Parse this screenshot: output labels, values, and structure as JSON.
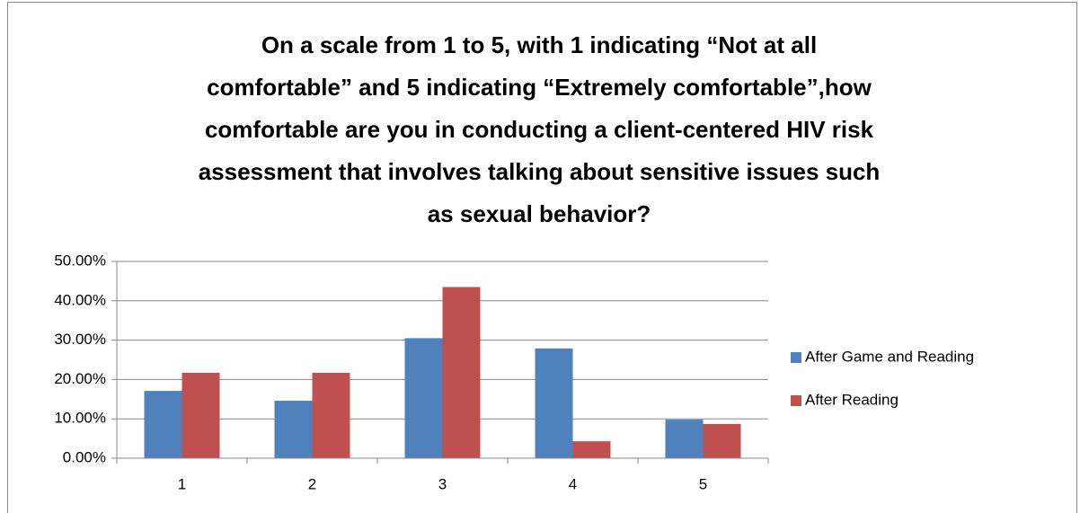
{
  "chart_data": {
    "type": "bar",
    "title": [
      "On a scale from 1 to 5, with 1 indicating “Not at all",
      "comfortable” and 5 indicating “Extremely comfortable”,how",
      "comfortable are you in conducting a client-centered HIV risk",
      "assessment that involves talking about sensitive issues such",
      "as sexual behavior?"
    ],
    "categories": [
      "1",
      "2",
      "3",
      "4",
      "5"
    ],
    "series": [
      {
        "name": "After Game and Reading",
        "color": "#4f81bd",
        "values": [
          17.1,
          14.6,
          30.5,
          27.9,
          9.8
        ]
      },
      {
        "name": "After Reading",
        "color": "#c0504d",
        "values": [
          21.7,
          21.7,
          43.5,
          4.3,
          8.7
        ]
      }
    ],
    "ylim": [
      0,
      50
    ],
    "yticks": [
      {
        "value": 0,
        "label": "0.00%"
      },
      {
        "value": 10,
        "label": "10.00%"
      },
      {
        "value": 20,
        "label": "20.00%"
      },
      {
        "value": 30,
        "label": "30.00%"
      },
      {
        "value": 40,
        "label": "40.00%"
      },
      {
        "value": 50,
        "label": "50.00%"
      }
    ],
    "grid": true,
    "legend": "right"
  }
}
